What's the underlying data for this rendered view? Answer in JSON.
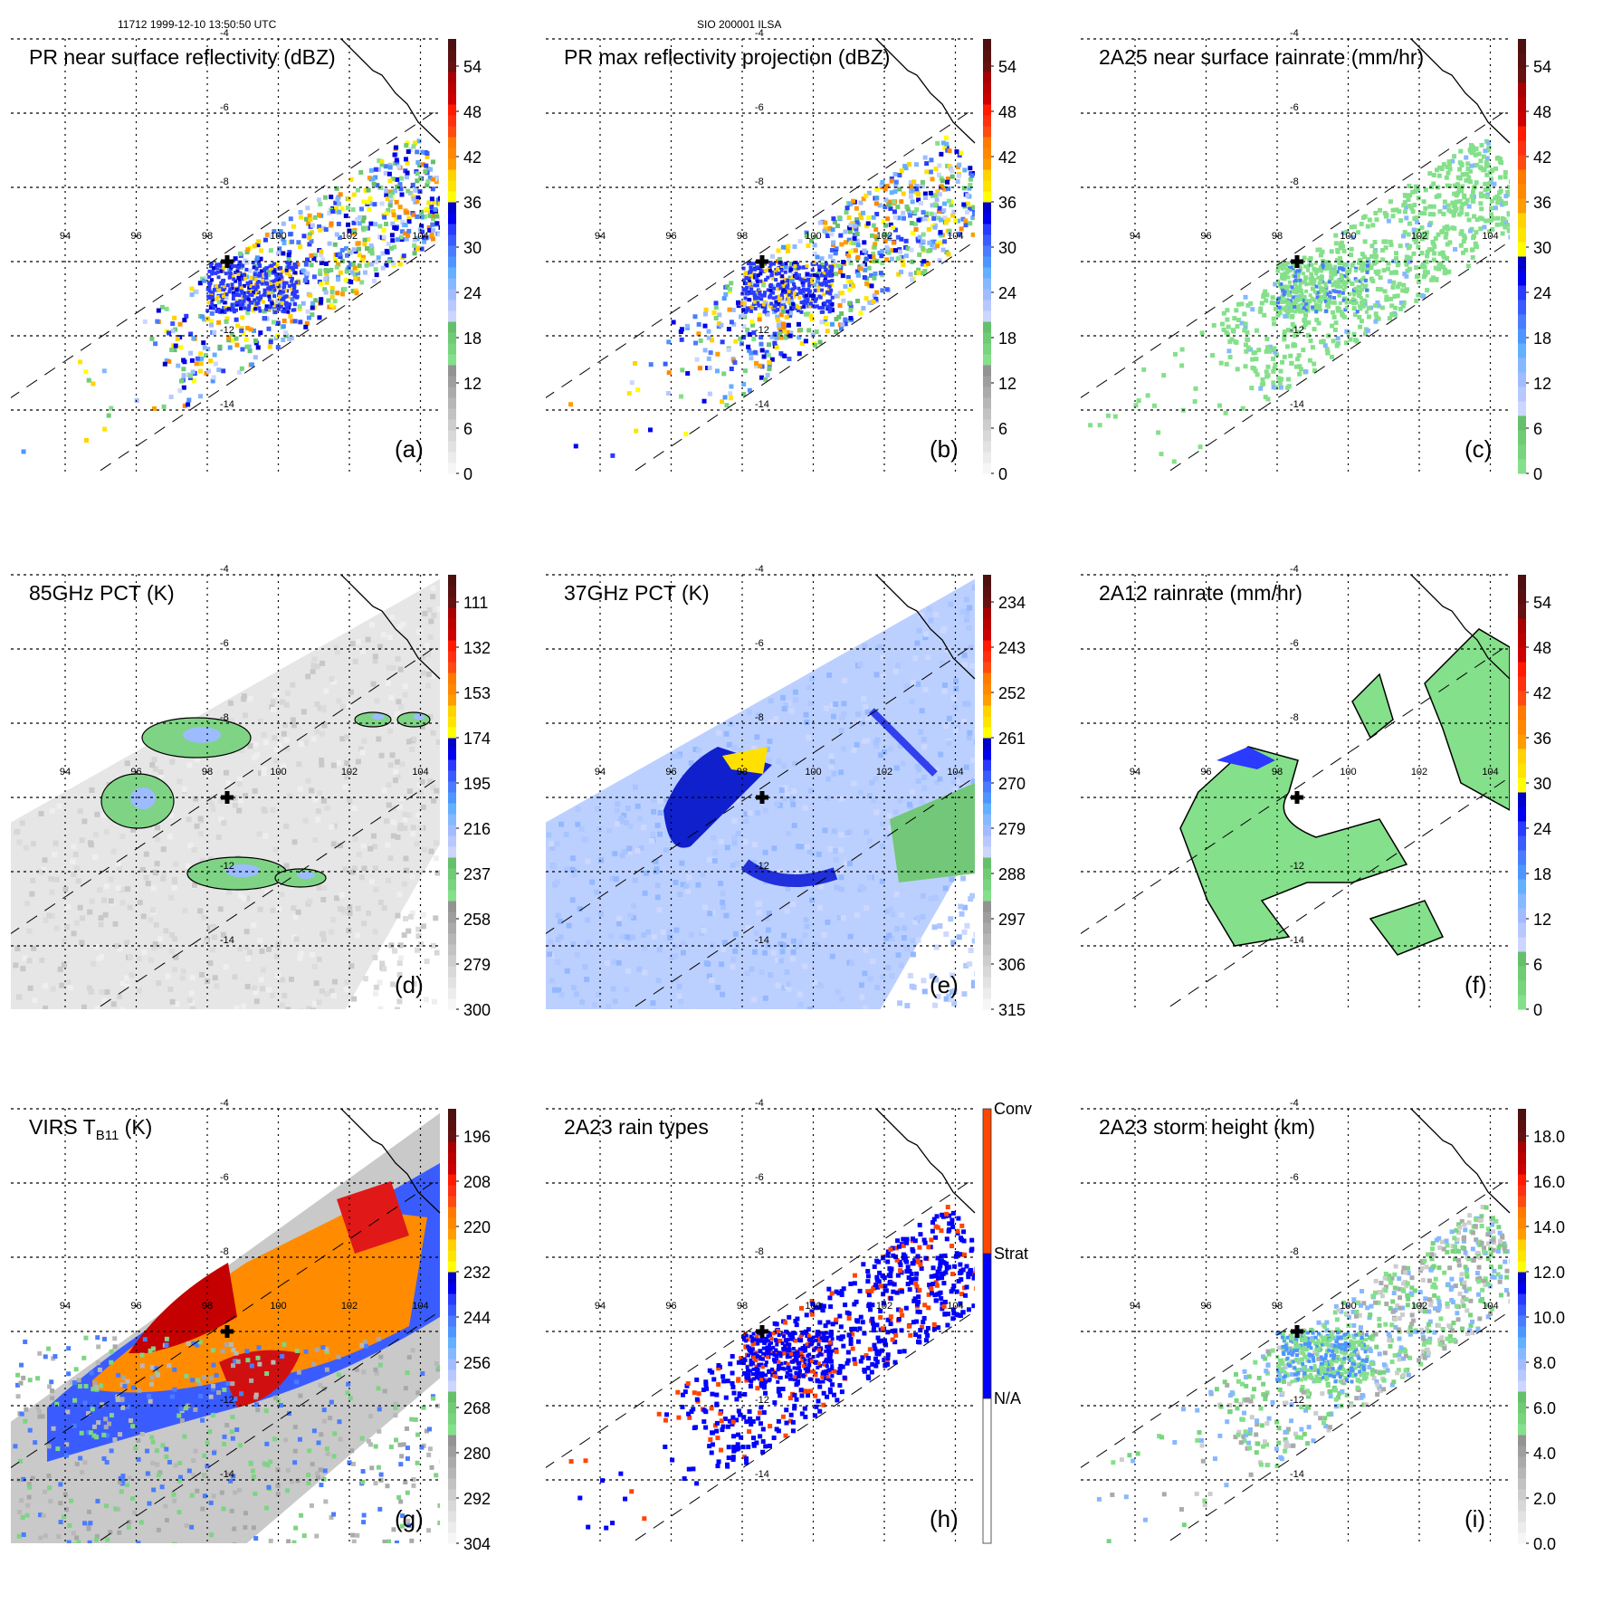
{
  "figure": {
    "header_left": "11712 1999-12-10 13:50:50 UTC",
    "header_center": "SIO 200001 ILSA",
    "lon_labels": [
      "94",
      "96",
      "98",
      "100",
      "102",
      "104"
    ],
    "lat_labels": [
      "-4",
      "-6",
      "-8",
      "-10",
      "-12",
      "-14"
    ],
    "storm_center_marker": "plus-marker"
  },
  "colormaps": {
    "standard": [
      "#f6f6f6",
      "#ececec",
      "#e2e2e2",
      "#d8d8d8",
      "#cdcdcd",
      "#c2c2c2",
      "#b6b6b6",
      "#aaaaaa",
      "#9e9e9e",
      "#939393",
      "#84e08a",
      "#78d47e",
      "#6fcc74",
      "#66bf6b",
      "#ccd6ff",
      "#b8c8ff",
      "#a0bcff",
      "#86b8ff",
      "#62b0ff",
      "#4d96ff",
      "#4a7cff",
      "#3a5cff",
      "#2a3aff",
      "#0000ee",
      "#0000cc",
      "#ffff00",
      "#ffe400",
      "#ffd200",
      "#ff9c00",
      "#ff8800",
      "#ff7a00",
      "#ff4a10",
      "#ff3010",
      "#ff1a00",
      "#cc0000",
      "#bb0000",
      "#a80000",
      "#661010",
      "#5a1010",
      "#4d1010"
    ],
    "rain": [
      "#84e08a",
      "#78d47e",
      "#6fcc74",
      "#66bf6b",
      "#ccd6ff",
      "#b8c8ff",
      "#a0bcff",
      "#86b8ff",
      "#62b0ff",
      "#4d96ff",
      "#4a7cff",
      "#3a5cff",
      "#2a3aff",
      "#0000ee",
      "#0000cc",
      "#ffff00",
      "#ffe400",
      "#ffd200",
      "#ff9c00",
      "#ff8800",
      "#ff7a00",
      "#ff4a10",
      "#ff3010",
      "#ff1a00",
      "#cc0000",
      "#bb0000",
      "#a80000",
      "#661010",
      "#5a1010",
      "#4d1010"
    ],
    "raintype": [
      "#ffffff",
      "#0000ff",
      "#ff4500"
    ]
  },
  "panels": [
    {
      "id": "a",
      "title": "PR near surface reflectivity (dBZ)",
      "label": "(a)",
      "cmap": "standard",
      "ticks": [
        "54",
        "48",
        "42",
        "36",
        "30",
        "24",
        "18",
        "12",
        "6",
        "0"
      ],
      "type": "pr-swath",
      "field": "scatter-blue"
    },
    {
      "id": "b",
      "title": "PR max reflectivity projection (dBZ)",
      "label": "(b)",
      "cmap": "standard",
      "ticks": [
        "54",
        "48",
        "42",
        "36",
        "30",
        "24",
        "18",
        "12",
        "6",
        "0"
      ],
      "type": "pr-swath",
      "field": "contour-blue"
    },
    {
      "id": "c",
      "title": "2A25 near surface rainrate (mm/hr)",
      "label": "(c)",
      "cmap": "rain",
      "ticks": [
        "54",
        "48",
        "42",
        "36",
        "30",
        "24",
        "18",
        "12",
        "6",
        "0"
      ],
      "type": "pr-swath",
      "field": "contour-green"
    },
    {
      "id": "d",
      "title": "85GHz PCT (K)",
      "label": "(d)",
      "cmap": "standard",
      "ticks": [
        "111",
        "132",
        "153",
        "174",
        "195",
        "216",
        "237",
        "258",
        "279",
        "300"
      ],
      "type": "tmi-swath",
      "field": "gray"
    },
    {
      "id": "e",
      "title": "37GHz PCT (K)",
      "label": "(e)",
      "cmap": "standard",
      "ticks": [
        "234",
        "243",
        "252",
        "261",
        "270",
        "279",
        "288",
        "297",
        "306",
        "315"
      ],
      "type": "tmi-swath",
      "field": "lightblue"
    },
    {
      "id": "f",
      "title": "2A12 rainrate (mm/hr)",
      "label": "(f)",
      "cmap": "rain",
      "ticks": [
        "54",
        "48",
        "42",
        "36",
        "30",
        "24",
        "18",
        "12",
        "6",
        "0"
      ],
      "type": "tmi-noswath",
      "field": "green"
    },
    {
      "id": "g",
      "title_main": "VIRS T",
      "title_sub": "B11",
      "title_end": " (K)",
      "label": "(g)",
      "cmap": "standard",
      "ticks": [
        "196",
        "208",
        "220",
        "232",
        "244",
        "256",
        "268",
        "280",
        "292",
        "304"
      ],
      "type": "virs-swath",
      "field": "ir"
    },
    {
      "id": "h",
      "title": "2A23 rain types",
      "label": "(h)",
      "cmap": "raintype",
      "categorical_ticks": [
        "Conv",
        "Strat",
        "N/A"
      ],
      "type": "pr-swath",
      "field": "raintype"
    },
    {
      "id": "i",
      "title": "2A23 storm height (km)",
      "label": "(i)",
      "cmap": "standard",
      "ticks": [
        "18.0",
        "16.0",
        "14.0",
        "12.0",
        "10.0",
        "8.0",
        "6.0",
        "4.0",
        "2.0",
        "0.0"
      ],
      "type": "pr-swath",
      "field": "height"
    }
  ]
}
